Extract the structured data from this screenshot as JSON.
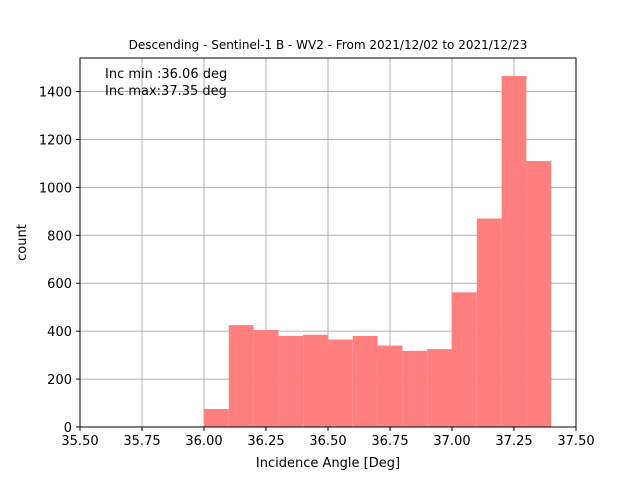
{
  "chart_data": {
    "type": "bar",
    "title": "Descending - Sentinel-1 B - WV2 - From 2021/12/02 to 2021/12/23",
    "xlabel": "Incidence Angle [Deg]",
    "ylabel": "count",
    "xlim": [
      35.5,
      37.5
    ],
    "ylim": [
      0,
      1540
    ],
    "x_ticks": [
      "35.50",
      "35.75",
      "36.00",
      "36.25",
      "36.50",
      "36.75",
      "37.00",
      "37.25",
      "37.50"
    ],
    "y_ticks": [
      "0",
      "200",
      "400",
      "600",
      "800",
      "1000",
      "1200",
      "1400"
    ],
    "grid": true,
    "bar_color": "#ff7f7f",
    "annotations": [
      "Inc min :36.06 deg",
      "Inc max:37.35 deg"
    ],
    "bins": [
      {
        "start": 36.0,
        "end": 36.1,
        "count": 75
      },
      {
        "start": 36.1,
        "end": 36.2,
        "count": 425
      },
      {
        "start": 36.2,
        "end": 36.3,
        "count": 405
      },
      {
        "start": 36.3,
        "end": 36.4,
        "count": 380
      },
      {
        "start": 36.4,
        "end": 36.5,
        "count": 385
      },
      {
        "start": 36.5,
        "end": 36.6,
        "count": 365
      },
      {
        "start": 36.6,
        "end": 36.7,
        "count": 380
      },
      {
        "start": 36.7,
        "end": 36.8,
        "count": 340
      },
      {
        "start": 36.8,
        "end": 36.9,
        "count": 318
      },
      {
        "start": 36.9,
        "end": 37.0,
        "count": 325
      },
      {
        "start": 37.0,
        "end": 37.1,
        "count": 562
      },
      {
        "start": 37.1,
        "end": 37.2,
        "count": 870
      },
      {
        "start": 37.2,
        "end": 37.3,
        "count": 1465
      },
      {
        "start": 37.3,
        "end": 37.4,
        "count": 1110
      }
    ]
  }
}
